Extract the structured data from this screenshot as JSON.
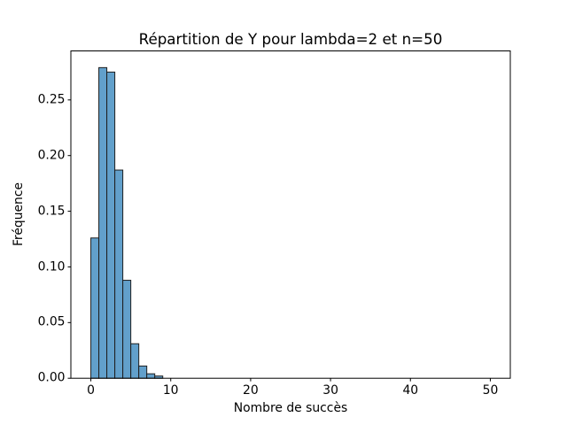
{
  "chart_data": {
    "type": "bar",
    "subtype": "histogram",
    "title": "Répartition de Y pour lambda=2 et n=50",
    "xlabel": "Nombre de succès",
    "ylabel": "Fréquence",
    "bin_width": 1,
    "bin_starts": [
      0,
      1,
      2,
      3,
      4,
      5,
      6,
      7,
      8
    ],
    "values": [
      0.126,
      0.279,
      0.275,
      0.187,
      0.088,
      0.031,
      0.011,
      0.004,
      0.002
    ],
    "xlim": [
      -2.5,
      52.5
    ],
    "ylim": [
      0,
      0.294
    ],
    "xticks": [
      0,
      10,
      20,
      30,
      40,
      50
    ],
    "xtick_labels": [
      "0",
      "10",
      "20",
      "30",
      "40",
      "50"
    ],
    "yticks": [
      0.0,
      0.05,
      0.1,
      0.15,
      0.2,
      0.25
    ],
    "ytick_labels": [
      "0.00",
      "0.05",
      "0.10",
      "0.15",
      "0.20",
      "0.25"
    ],
    "grid": false,
    "legend": null,
    "colors": {
      "bar_fill": "#62a0cb",
      "bar_edge": "#1f1f1f",
      "axis": "#000000",
      "text": "#000000",
      "background": "#ffffff"
    }
  }
}
